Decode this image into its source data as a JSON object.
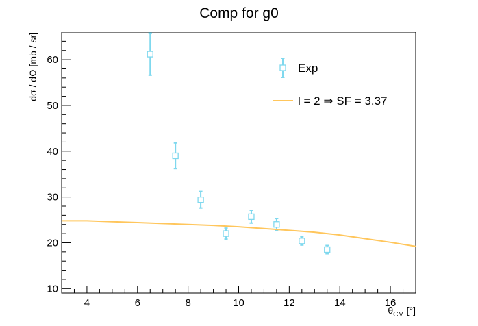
{
  "chart_data": {
    "type": "scatter",
    "title": "Comp for g0",
    "xlabel": "θCM [°]",
    "xlabel_parts": {
      "base": "θ",
      "sub": "CM",
      "tail": " [°]"
    },
    "ylabel": "dσ / dΩ [mb / sr]",
    "xlim": [
      3,
      17
    ],
    "ylim": [
      9,
      66
    ],
    "x_ticks": [
      4,
      6,
      8,
      10,
      12,
      14,
      16
    ],
    "y_ticks": [
      10,
      20,
      30,
      40,
      50,
      60
    ],
    "grid": false,
    "legend_position": "top-right",
    "series": [
      {
        "name": "Exp",
        "kind": "points_with_errors",
        "marker": "open-square",
        "color": "#7fd8ee",
        "points": [
          {
            "x": 6.5,
            "y": 61.2,
            "err": 4.6
          },
          {
            "x": 7.5,
            "y": 39.0,
            "err": 2.8
          },
          {
            "x": 8.5,
            "y": 29.4,
            "err": 1.8
          },
          {
            "x": 9.5,
            "y": 22.0,
            "err": 1.2
          },
          {
            "x": 10.5,
            "y": 25.7,
            "err": 1.4
          },
          {
            "x": 11.5,
            "y": 24.0,
            "err": 1.3
          },
          {
            "x": 12.5,
            "y": 20.4,
            "err": 0.9
          },
          {
            "x": 13.5,
            "y": 18.5,
            "err": 0.9
          }
        ]
      },
      {
        "name": "l = 2 ⇒ SF = 3.37",
        "kind": "line",
        "color": "#ffc65c",
        "x": [
          3.0,
          4.0,
          5.0,
          6.0,
          7.0,
          8.0,
          9.0,
          10.0,
          11.0,
          12.0,
          13.0,
          14.0,
          15.0,
          16.0,
          17.0
        ],
        "y": [
          24.8,
          24.8,
          24.6,
          24.4,
          24.2,
          24.0,
          23.8,
          23.5,
          23.1,
          22.7,
          22.3,
          21.7,
          20.9,
          20.1,
          19.2
        ]
      }
    ]
  }
}
